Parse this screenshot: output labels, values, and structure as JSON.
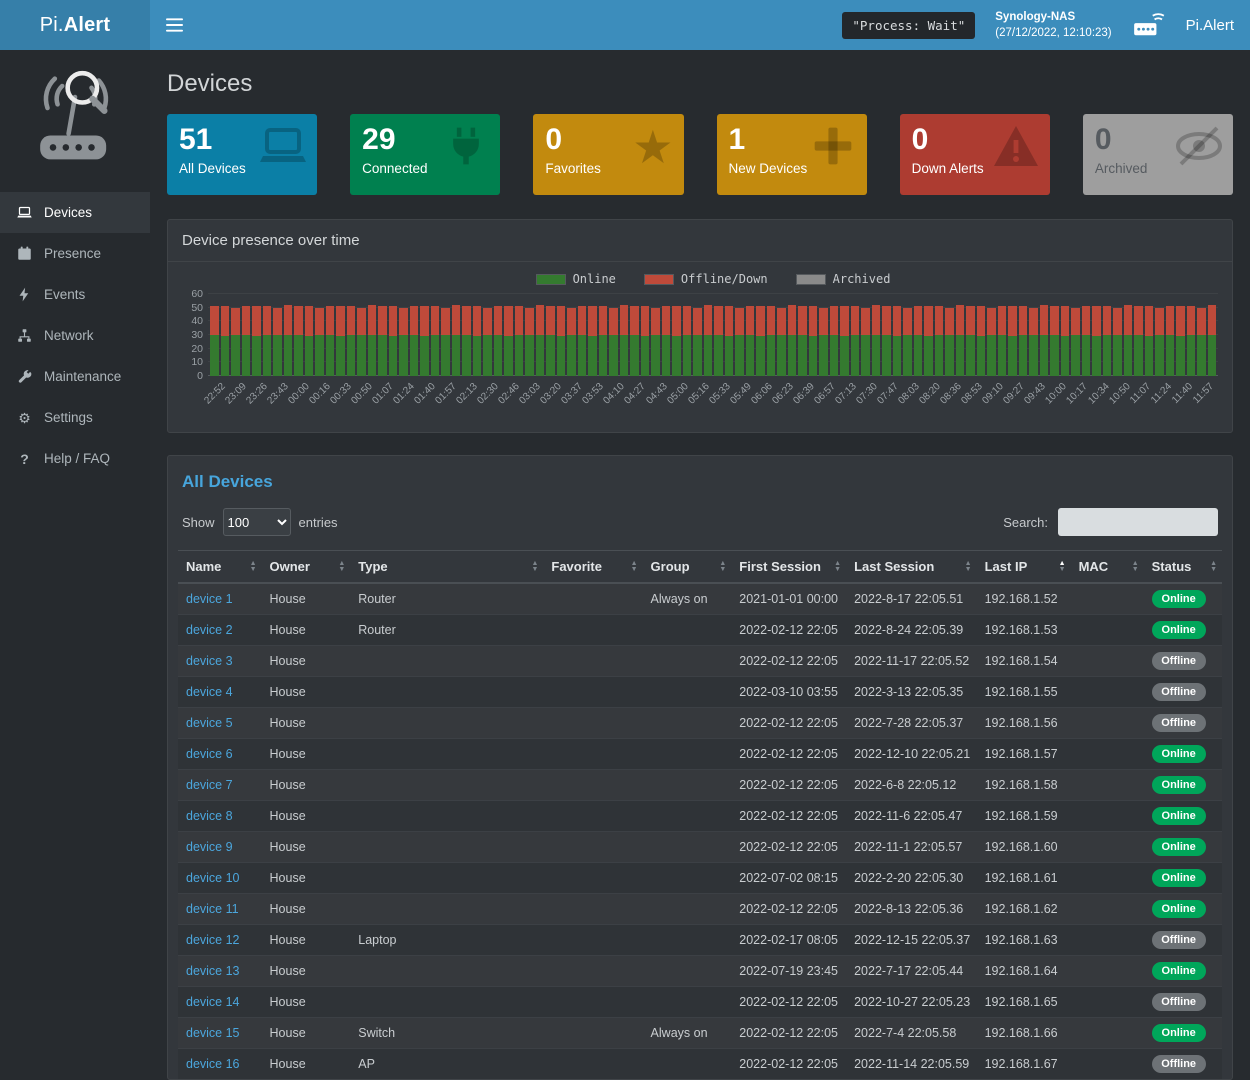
{
  "topbar": {
    "brand_prefix": "Pi.",
    "brand_bold": "Alert",
    "process_badge": "\"Process: Wait\"",
    "host_name": "Synology-NAS",
    "host_time": "(27/12/2022, 12:10:23)",
    "user_label": "Pi.Alert"
  },
  "sidebar": {
    "items": [
      {
        "label": "Devices",
        "icon": "laptop-icon",
        "active": true
      },
      {
        "label": "Presence",
        "icon": "calendar-icon",
        "active": false
      },
      {
        "label": "Events",
        "icon": "bolt-icon",
        "active": false
      },
      {
        "label": "Network",
        "icon": "network-icon",
        "active": false
      },
      {
        "label": "Maintenance",
        "icon": "wrench-icon",
        "active": false
      },
      {
        "label": "Settings",
        "icon": "gear-icon",
        "active": false
      },
      {
        "label": "Help / FAQ",
        "icon": "question-icon",
        "active": false
      }
    ]
  },
  "page_title": "Devices",
  "summary_cards": [
    {
      "value": "51",
      "label": "All Devices",
      "icon": "laptop-icon",
      "bg": "#0b7fa6",
      "fg": "#ffffff"
    },
    {
      "value": "29",
      "label": "Connected",
      "icon": "plug-icon",
      "bg": "#00804f",
      "fg": "#ffffff"
    },
    {
      "value": "0",
      "label": "Favorites",
      "icon": "star-icon",
      "bg": "#c28a0e",
      "fg": "#ffffff"
    },
    {
      "value": "1",
      "label": "New Devices",
      "icon": "plus-icon",
      "bg": "#c28a0e",
      "fg": "#ffffff"
    },
    {
      "value": "0",
      "label": "Down Alerts",
      "icon": "warning-icon",
      "bg": "#ad3c31",
      "fg": "#ffffff"
    },
    {
      "value": "0",
      "label": "Archived",
      "icon": "eye-slash-icon",
      "bg": "#9e9e9e",
      "fg": "#565b60"
    }
  ],
  "chart_panel": {
    "title": "Device presence over time"
  },
  "chart_data": {
    "type": "bar",
    "stacked": true,
    "title": "Device presence over time",
    "legend": [
      {
        "label": "Online",
        "color": "#347a2f"
      },
      {
        "label": "Offline/Down",
        "color": "#bf4a3a"
      },
      {
        "label": "Archived",
        "color": "#8a8a8a"
      }
    ],
    "ylim": [
      0,
      60
    ],
    "yticks": [
      0,
      10,
      20,
      30,
      40,
      50,
      60
    ],
    "x_labels": [
      "22:52",
      "23:09",
      "23:26",
      "23:43",
      "00:00",
      "00:16",
      "00:33",
      "00:50",
      "01:07",
      "01:24",
      "01:40",
      "01:57",
      "02:13",
      "02:30",
      "02:46",
      "03:03",
      "03:20",
      "03:37",
      "03:53",
      "04:10",
      "04:27",
      "04:43",
      "05:00",
      "05:16",
      "05:33",
      "05:49",
      "06:06",
      "06:23",
      "06:39",
      "06:57",
      "07:13",
      "07:30",
      "07:47",
      "08:03",
      "08:20",
      "08:36",
      "08:53",
      "09:10",
      "09:27",
      "09:43",
      "10:00",
      "10:17",
      "10:34",
      "10:50",
      "11:07",
      "11:24",
      "11:40",
      "11:57"
    ],
    "series": [
      {
        "name": "Online",
        "values": [
          30,
          29,
          30,
          30,
          29,
          30,
          30,
          30,
          30,
          29,
          30,
          30,
          29,
          30,
          30,
          30,
          30,
          29,
          30,
          30,
          29,
          30,
          30,
          30,
          30,
          29,
          30,
          30,
          29,
          30,
          30,
          30,
          30,
          29,
          30,
          30,
          29,
          30,
          30,
          30,
          30,
          29,
          30,
          30,
          29,
          30,
          30,
          30,
          30,
          29,
          30,
          30,
          29,
          30,
          30,
          30,
          30,
          29,
          30,
          30,
          29,
          30,
          30,
          30,
          30,
          29,
          30,
          30,
          29,
          30,
          30,
          30,
          30,
          29,
          30,
          30,
          29,
          30,
          30,
          30,
          30,
          29,
          30,
          30,
          29,
          30,
          30,
          30,
          30,
          29,
          30,
          30,
          29,
          30,
          30,
          30
        ]
      },
      {
        "name": "Offline/Down",
        "values": [
          21,
          22,
          20,
          21,
          22,
          21,
          20,
          22,
          21,
          22,
          20,
          21,
          22,
          21,
          20,
          22,
          21,
          22,
          20,
          21,
          22,
          21,
          20,
          22,
          21,
          22,
          20,
          21,
          22,
          21,
          20,
          22,
          21,
          22,
          20,
          21,
          22,
          21,
          20,
          22,
          21,
          22,
          20,
          21,
          22,
          21,
          20,
          22,
          21,
          22,
          20,
          21,
          22,
          21,
          20,
          22,
          21,
          22,
          20,
          21,
          22,
          21,
          20,
          22,
          21,
          22,
          20,
          21,
          22,
          21,
          20,
          22,
          21,
          22,
          20,
          21,
          22,
          21,
          20,
          22,
          21,
          22,
          20,
          21,
          22,
          21,
          20,
          22,
          21,
          22,
          20,
          21,
          22,
          21,
          20,
          22
        ]
      },
      {
        "name": "Archived",
        "values": [],
        "all_zero": true
      }
    ]
  },
  "device_table": {
    "title": "All Devices",
    "show_label": "Show",
    "entries_label": "entries",
    "page_size": "100",
    "search_label": "Search:",
    "search_value": "",
    "columns": [
      "Name",
      "Owner",
      "Type",
      "Favorite",
      "Group",
      "First Session",
      "Last Session",
      "Last IP",
      "MAC",
      "Status"
    ],
    "sorted_column": "Last IP",
    "status_colors": {
      "Online": "#00a65a",
      "Offline": "#6d7276"
    },
    "rows": [
      [
        "device 1",
        "House",
        "Router",
        "",
        "Always on",
        "2021-01-01  00:00",
        "2022-8-17  22:05.51",
        "192.168.1.52",
        "",
        "Online"
      ],
      [
        "device 2",
        "House",
        "Router",
        "",
        "",
        "2022-02-12  22:05",
        "2022-8-24  22:05.39",
        "192.168.1.53",
        "",
        "Online"
      ],
      [
        "device 3",
        "House",
        "",
        "",
        "",
        "2022-02-12  22:05",
        "2022-11-17  22:05.52",
        "192.168.1.54",
        "",
        "Offline"
      ],
      [
        "device 4",
        "House",
        "",
        "",
        "",
        "2022-03-10  03:55",
        "2022-3-13  22:05.35",
        "192.168.1.55",
        "",
        "Offline"
      ],
      [
        "device 5",
        "House",
        "",
        "",
        "",
        "2022-02-12  22:05",
        "2022-7-28  22:05.37",
        "192.168.1.56",
        "",
        "Offline"
      ],
      [
        "device 6",
        "House",
        "",
        "",
        "",
        "2022-02-12  22:05",
        "2022-12-10  22:05.21",
        "192.168.1.57",
        "",
        "Online"
      ],
      [
        "device 7",
        "House",
        "",
        "",
        "",
        "2022-02-12  22:05",
        "2022-6-8  22:05.12",
        "192.168.1.58",
        "",
        "Online"
      ],
      [
        "device 8",
        "House",
        "",
        "",
        "",
        "2022-02-12  22:05",
        "2022-11-6  22:05.47",
        "192.168.1.59",
        "",
        "Online"
      ],
      [
        "device 9",
        "House",
        "",
        "",
        "",
        "2022-02-12  22:05",
        "2022-11-1  22:05.57",
        "192.168.1.60",
        "",
        "Online"
      ],
      [
        "device 10",
        "House",
        "",
        "",
        "",
        "2022-07-02  08:15",
        "2022-2-20  22:05.30",
        "192.168.1.61",
        "",
        "Online"
      ],
      [
        "device 11",
        "House",
        "",
        "",
        "",
        "2022-02-12  22:05",
        "2022-8-13  22:05.36",
        "192.168.1.62",
        "",
        "Online"
      ],
      [
        "device 12",
        "House",
        "Laptop",
        "",
        "",
        "2022-02-17  08:05",
        "2022-12-15  22:05.37",
        "192.168.1.63",
        "",
        "Offline"
      ],
      [
        "device 13",
        "House",
        "",
        "",
        "",
        "2022-07-19  23:45",
        "2022-7-17  22:05.44",
        "192.168.1.64",
        "",
        "Online"
      ],
      [
        "device 14",
        "House",
        "",
        "",
        "",
        "2022-02-12  22:05",
        "2022-10-27  22:05.23",
        "192.168.1.65",
        "",
        "Offline"
      ],
      [
        "device 15",
        "House",
        "Switch",
        "",
        "Always on",
        "2022-02-12  22:05",
        "2022-7-4  22:05.58",
        "192.168.1.66",
        "",
        "Online"
      ],
      [
        "device 16",
        "House",
        "AP",
        "",
        "",
        "2022-02-12  22:05",
        "2022-11-14  22:05.59",
        "192.168.1.67",
        "",
        "Offline"
      ]
    ]
  }
}
